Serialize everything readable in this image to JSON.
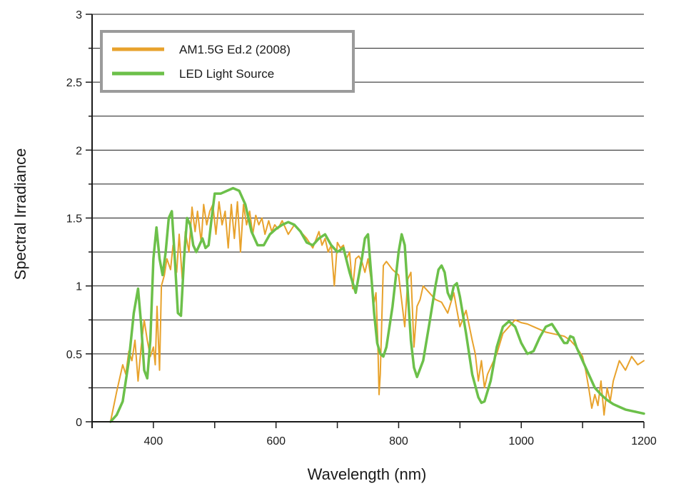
{
  "chart_data": {
    "type": "line",
    "title": "",
    "xlabel": "Wavelength (nm)",
    "ylabel": "Spectral Irradiance",
    "xlim": [
      300,
      1200
    ],
    "ylim": [
      0,
      3
    ],
    "x_ticks": [
      400,
      600,
      800,
      1000,
      1200
    ],
    "x_tick_labels": [
      "400",
      "600",
      "800",
      "1000",
      "1200"
    ],
    "x_minor_step": 100,
    "y_ticks": [
      0,
      0.5,
      1,
      1.5,
      2,
      2.5,
      3
    ],
    "y_tick_labels": [
      "0",
      "0.5",
      "1",
      "1.5",
      "2",
      "2.5",
      "3"
    ],
    "y_minor_step": 0.25,
    "grid": "horizontal",
    "legend_position": "top-left",
    "series": [
      {
        "name": "AM1.5G Ed.2 (2008)",
        "color": "#e8a22c",
        "x": [
          330,
          340,
          350,
          355,
          360,
          365,
          370,
          375,
          380,
          385,
          390,
          395,
          400,
          403,
          406,
          410,
          413,
          418,
          422,
          428,
          432,
          438,
          442,
          447,
          452,
          458,
          463,
          468,
          472,
          478,
          482,
          487,
          492,
          497,
          502,
          507,
          512,
          517,
          522,
          527,
          532,
          537,
          542,
          547,
          552,
          557,
          562,
          567,
          572,
          577,
          582,
          588,
          593,
          598,
          603,
          610,
          620,
          630,
          640,
          650,
          660,
          670,
          675,
          680,
          685,
          690,
          695,
          700,
          705,
          710,
          715,
          720,
          725,
          730,
          735,
          740,
          745,
          750,
          755,
          760,
          763,
          766,
          768,
          770,
          775,
          780,
          790,
          800,
          810,
          815,
          820,
          825,
          830,
          835,
          840,
          850,
          860,
          870,
          880,
          890,
          900,
          910,
          920,
          925,
          930,
          935,
          940,
          945,
          950,
          960,
          970,
          980,
          990,
          1000,
          1010,
          1020,
          1030,
          1040,
          1050,
          1060,
          1070,
          1080,
          1090,
          1100,
          1105,
          1110,
          1115,
          1120,
          1125,
          1130,
          1135,
          1140,
          1145,
          1150,
          1160,
          1170,
          1180,
          1190,
          1200
        ],
        "values": [
          0.0,
          0.22,
          0.42,
          0.35,
          0.52,
          0.45,
          0.6,
          0.3,
          0.55,
          0.75,
          0.6,
          0.48,
          0.55,
          0.42,
          0.85,
          0.38,
          1.0,
          1.08,
          1.2,
          1.12,
          1.3,
          1.1,
          1.38,
          1.05,
          1.4,
          1.25,
          1.58,
          1.4,
          1.55,
          1.32,
          1.6,
          1.45,
          1.55,
          1.6,
          1.38,
          1.62,
          1.45,
          1.55,
          1.28,
          1.6,
          1.35,
          1.62,
          1.25,
          1.6,
          1.45,
          1.55,
          1.38,
          1.52,
          1.45,
          1.5,
          1.38,
          1.48,
          1.4,
          1.45,
          1.42,
          1.48,
          1.38,
          1.45,
          1.4,
          1.35,
          1.28,
          1.4,
          1.3,
          1.35,
          1.25,
          1.3,
          1.0,
          1.32,
          1.28,
          1.3,
          1.2,
          1.25,
          0.98,
          1.2,
          1.22,
          1.18,
          1.1,
          1.2,
          1.05,
          0.88,
          0.95,
          0.6,
          0.2,
          0.35,
          1.15,
          1.18,
          1.12,
          1.08,
          0.7,
          1.05,
          1.1,
          0.55,
          0.85,
          0.9,
          1.0,
          0.95,
          0.9,
          0.88,
          0.8,
          0.95,
          0.7,
          0.82,
          0.6,
          0.5,
          0.3,
          0.45,
          0.25,
          0.35,
          0.4,
          0.5,
          0.65,
          0.7,
          0.75,
          0.73,
          0.72,
          0.7,
          0.68,
          0.66,
          0.65,
          0.64,
          0.63,
          0.6,
          0.55,
          0.48,
          0.38,
          0.25,
          0.1,
          0.2,
          0.12,
          0.3,
          0.05,
          0.25,
          0.15,
          0.3,
          0.45,
          0.38,
          0.48,
          0.42,
          0.45
        ]
      },
      {
        "name": "LED Light Source",
        "color": "#6cc04a",
        "x": [
          330,
          340,
          350,
          360,
          368,
          375,
          380,
          385,
          390,
          395,
          400,
          405,
          410,
          415,
          420,
          425,
          430,
          435,
          440,
          445,
          450,
          455,
          460,
          465,
          470,
          475,
          480,
          485,
          490,
          495,
          500,
          510,
          520,
          530,
          540,
          550,
          560,
          570,
          580,
          590,
          600,
          610,
          620,
          630,
          640,
          650,
          660,
          670,
          680,
          690,
          700,
          710,
          720,
          730,
          740,
          745,
          750,
          755,
          760,
          765,
          770,
          775,
          780,
          790,
          800,
          805,
          810,
          815,
          820,
          825,
          830,
          840,
          850,
          860,
          865,
          870,
          875,
          880,
          885,
          890,
          895,
          900,
          910,
          920,
          930,
          935,
          940,
          950,
          960,
          970,
          980,
          990,
          1000,
          1010,
          1020,
          1030,
          1040,
          1050,
          1060,
          1070,
          1075,
          1080,
          1085,
          1090,
          1100,
          1110,
          1120,
          1130,
          1140,
          1150,
          1160,
          1170,
          1180,
          1190,
          1200
        ],
        "values": [
          0.0,
          0.05,
          0.15,
          0.45,
          0.8,
          0.98,
          0.72,
          0.38,
          0.32,
          0.6,
          1.2,
          1.43,
          1.2,
          1.08,
          1.25,
          1.5,
          1.55,
          1.2,
          0.8,
          0.78,
          1.2,
          1.5,
          1.45,
          1.3,
          1.25,
          1.3,
          1.35,
          1.28,
          1.3,
          1.5,
          1.68,
          1.68,
          1.7,
          1.72,
          1.7,
          1.6,
          1.4,
          1.3,
          1.3,
          1.38,
          1.42,
          1.45,
          1.47,
          1.45,
          1.4,
          1.32,
          1.3,
          1.35,
          1.38,
          1.3,
          1.25,
          1.28,
          1.1,
          0.95,
          1.2,
          1.35,
          1.38,
          1.1,
          0.8,
          0.58,
          0.5,
          0.48,
          0.55,
          0.85,
          1.25,
          1.38,
          1.3,
          0.95,
          0.6,
          0.4,
          0.33,
          0.45,
          0.72,
          1.0,
          1.12,
          1.15,
          1.1,
          0.95,
          0.9,
          1.0,
          1.02,
          0.92,
          0.65,
          0.35,
          0.18,
          0.14,
          0.15,
          0.3,
          0.55,
          0.7,
          0.74,
          0.7,
          0.58,
          0.5,
          0.52,
          0.62,
          0.7,
          0.72,
          0.65,
          0.58,
          0.58,
          0.63,
          0.62,
          0.55,
          0.45,
          0.35,
          0.25,
          0.2,
          0.16,
          0.13,
          0.11,
          0.09,
          0.08,
          0.07,
          0.06
        ]
      }
    ]
  }
}
